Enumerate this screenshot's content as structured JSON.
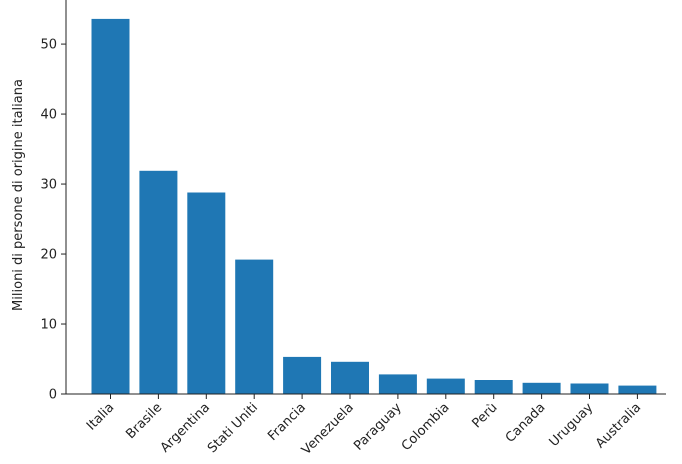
{
  "chart_data": {
    "type": "bar",
    "categories": [
      "Italia",
      "Brasile",
      "Argentina",
      "Stati Uniti",
      "Francia",
      "Venezuela",
      "Paraguay",
      "Colombia",
      "Perù",
      "Canada",
      "Uruguay",
      "Australia"
    ],
    "values": [
      53.6,
      31.9,
      28.8,
      19.2,
      5.3,
      4.6,
      2.8,
      2.2,
      2.0,
      1.6,
      1.5,
      1.2
    ],
    "title": "",
    "xlabel": "",
    "ylabel": "Milioni di persone di origine italiana",
    "ylim": [
      0,
      56.3
    ],
    "yticks": [
      0,
      10,
      20,
      30,
      40,
      50
    ],
    "bar_color": "#1f77b4",
    "grid": false,
    "legend": "none"
  }
}
